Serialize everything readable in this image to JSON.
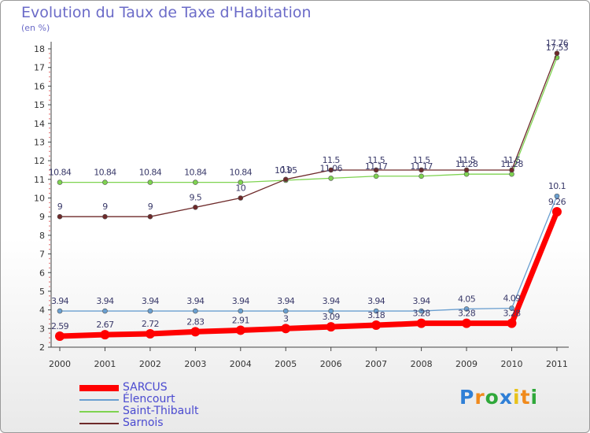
{
  "title": "Evolution du Taux de Taxe d'Habitation",
  "subtitle": "(en %)",
  "logo": {
    "letters": [
      {
        "ch": "P",
        "color": "#2f7fd6"
      },
      {
        "ch": "r",
        "color": "#f08a1c"
      },
      {
        "ch": "o",
        "color": "#2fa83a"
      },
      {
        "ch": "x",
        "color": "#2f7fd6"
      },
      {
        "ch": "i",
        "color": "#e8c21a"
      },
      {
        "ch": "t",
        "color": "#f08a1c"
      },
      {
        "ch": "i",
        "color": "#2fa83a"
      }
    ]
  },
  "chart_data": {
    "type": "line",
    "title": "Evolution du Taux de Taxe d'Habitation",
    "subtitle": "(en %)",
    "xlabel": "",
    "ylabel": "",
    "ylim": [
      2,
      18
    ],
    "yticks": [
      "2",
      "3",
      "4",
      "5",
      "6",
      "7",
      "8",
      "9",
      "10",
      "11",
      "12",
      "13",
      "14",
      "15",
      "16",
      "17",
      "18"
    ],
    "x": [
      "2000",
      "2001",
      "2002",
      "2003",
      "2004",
      "2005",
      "2006",
      "2007",
      "2008",
      "2009",
      "2010",
      "2011"
    ],
    "legend_position": "bottom-left",
    "series": [
      {
        "name": "Saint-Thibault",
        "color": "#7ed350",
        "values": [
          10.84,
          10.84,
          10.84,
          10.84,
          10.84,
          10.95,
          11.06,
          11.17,
          11.17,
          11.28,
          11.28,
          17.53
        ],
        "labels": [
          "10.84",
          "10.84",
          "10.84",
          "10.84",
          "10.84",
          "10.95",
          "11.06",
          "11.17",
          "11.17",
          "11.28",
          "11.28",
          "17.53"
        ]
      },
      {
        "name": "Sarnois",
        "color": "#6e2a2a",
        "values": [
          9,
          9,
          9,
          9.5,
          10,
          11,
          11.5,
          11.5,
          11.5,
          11.5,
          11.5,
          17.76
        ],
        "labels": [
          "9",
          "9",
          "9",
          "9.5",
          "10",
          "11",
          "11.5",
          "11.5",
          "11.5",
          "11.5",
          "11.5",
          "17.76"
        ]
      },
      {
        "name": "Élencourt",
        "color": "#6a9fd0",
        "values": [
          3.94,
          3.94,
          3.94,
          3.94,
          3.94,
          3.94,
          3.94,
          3.94,
          3.94,
          4.05,
          4.09,
          10.1
        ],
        "labels": [
          "3.94",
          "3.94",
          "3.94",
          "3.94",
          "3.94",
          "3.94",
          "3.94",
          "3.94",
          "3.94",
          "4.05",
          "4.09",
          "10.1"
        ]
      },
      {
        "name": "SARCUS",
        "color": "#ff0000",
        "values": [
          2.59,
          2.67,
          2.72,
          2.83,
          2.91,
          3,
          3.09,
          3.18,
          3.28,
          3.28,
          3.28,
          9.26
        ],
        "labels": [
          "2.59",
          "2.67",
          "2.72",
          "2.83",
          "2.91",
          "3",
          "3.09",
          "3.18",
          "3.28",
          "3.28",
          "3.28",
          "9.26"
        ]
      }
    ],
    "legend": [
      {
        "name": "SARCUS",
        "color": "#ff0000"
      },
      {
        "name": "Élencourt",
        "color": "#6a9fd0"
      },
      {
        "name": "Saint-Thibault",
        "color": "#7ed350"
      },
      {
        "name": "Sarnois",
        "color": "#6e2a2a"
      }
    ]
  }
}
